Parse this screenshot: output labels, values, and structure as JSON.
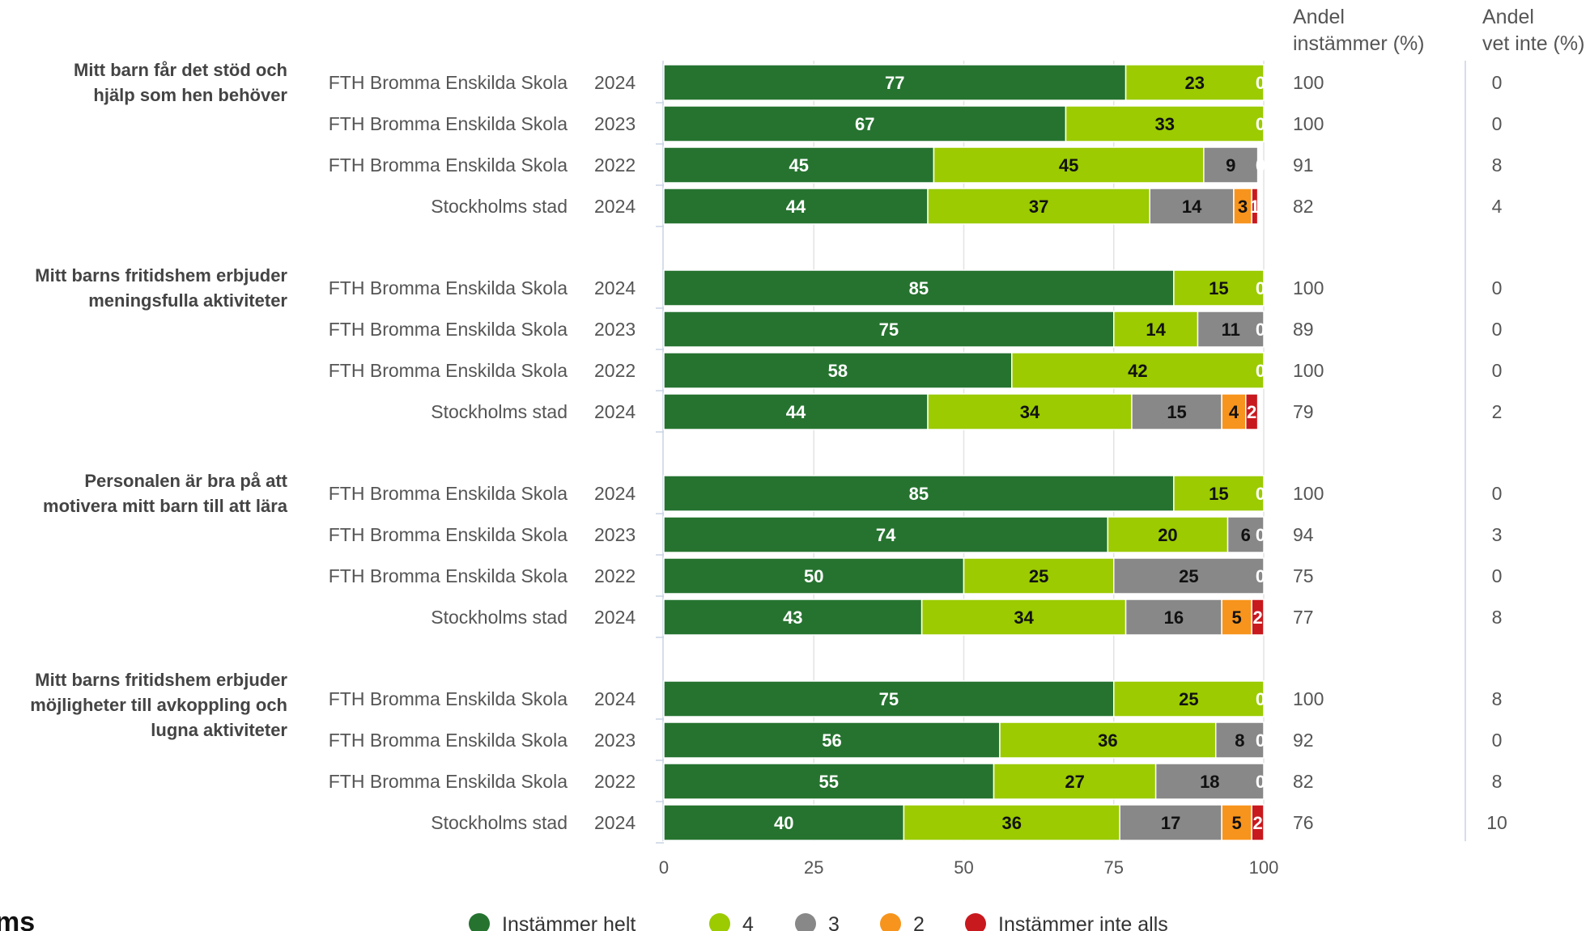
{
  "chart_data": {
    "type": "bar",
    "orientation": "horizontal",
    "stacked": true,
    "xlim": [
      0,
      100
    ],
    "x_ticks": [
      0,
      25,
      50,
      75,
      100
    ],
    "grid": true,
    "legend_position": "bottom",
    "series": [
      {
        "name": "Instämmer helt",
        "color": "#267330"
      },
      {
        "name": "4",
        "color": "#9BCB00"
      },
      {
        "name": "3",
        "color": "#888888"
      },
      {
        "name": "2",
        "color": "#F7941D"
      },
      {
        "name": "Instämmer inte alls",
        "color": "#C8191E"
      }
    ],
    "column_headers": {
      "agree": [
        "Andel",
        "instämmer (%)"
      ],
      "dont_know": [
        "Andel",
        "vet inte (%)"
      ]
    },
    "groups": [
      {
        "question": [
          "Mitt barn får det stöd och",
          "hjälp som hen behöver"
        ],
        "rows": [
          {
            "unit": "FTH Bromma Enskilda Skola",
            "year": "2024",
            "values": [
              77,
              23,
              0,
              0,
              0
            ],
            "agree": "100",
            "dont_know": "0"
          },
          {
            "unit": "FTH Bromma Enskilda Skola",
            "year": "2023",
            "values": [
              67,
              33,
              0,
              0,
              0
            ],
            "agree": "100",
            "dont_know": "0"
          },
          {
            "unit": "FTH Bromma Enskilda Skola",
            "year": "2022",
            "values": [
              45,
              45,
              9,
              0,
              0
            ],
            "agree": "91",
            "dont_know": "8"
          },
          {
            "unit": "Stockholms stad",
            "year": "2024",
            "values": [
              44,
              37,
              14,
              3,
              1
            ],
            "agree": "82",
            "dont_know": "4"
          }
        ]
      },
      {
        "question": [
          "Mitt barns fritidshem erbjuder",
          "meningsfulla aktiviteter"
        ],
        "rows": [
          {
            "unit": "FTH Bromma Enskilda Skola",
            "year": "2024",
            "values": [
              85,
              15,
              0,
              0,
              0
            ],
            "agree": "100",
            "dont_know": "0"
          },
          {
            "unit": "FTH Bromma Enskilda Skola",
            "year": "2023",
            "values": [
              75,
              14,
              11,
              0,
              0
            ],
            "agree": "89",
            "dont_know": "0"
          },
          {
            "unit": "FTH Bromma Enskilda Skola",
            "year": "2022",
            "values": [
              58,
              42,
              0,
              0,
              0
            ],
            "agree": "100",
            "dont_know": "0"
          },
          {
            "unit": "Stockholms stad",
            "year": "2024",
            "values": [
              44,
              34,
              15,
              4,
              2
            ],
            "agree": "79",
            "dont_know": "2"
          }
        ]
      },
      {
        "question": [
          "Personalen är bra på att",
          "motivera mitt barn till att lära"
        ],
        "rows": [
          {
            "unit": "FTH Bromma Enskilda Skola",
            "year": "2024",
            "values": [
              85,
              15,
              0,
              0,
              0
            ],
            "agree": "100",
            "dont_know": "0"
          },
          {
            "unit": "FTH Bromma Enskilda Skola",
            "year": "2023",
            "values": [
              74,
              20,
              6,
              0,
              0
            ],
            "agree": "94",
            "dont_know": "3"
          },
          {
            "unit": "FTH Bromma Enskilda Skola",
            "year": "2022",
            "values": [
              50,
              25,
              25,
              0,
              0
            ],
            "agree": "75",
            "dont_know": "0"
          },
          {
            "unit": "Stockholms stad",
            "year": "2024",
            "values": [
              43,
              34,
              16,
              5,
              2
            ],
            "agree": "77",
            "dont_know": "8"
          }
        ]
      },
      {
        "question": [
          "Mitt barns fritidshem erbjuder",
          "möjligheter till avkoppling och",
          "lugna aktiviteter"
        ],
        "rows": [
          {
            "unit": "FTH Bromma Enskilda Skola",
            "year": "2024",
            "values": [
              75,
              25,
              0,
              0,
              0
            ],
            "agree": "100",
            "dont_know": "8"
          },
          {
            "unit": "FTH Bromma Enskilda Skola",
            "year": "2023",
            "values": [
              56,
              36,
              8,
              0,
              0
            ],
            "agree": "92",
            "dont_know": "0"
          },
          {
            "unit": "FTH Bromma Enskilda Skola",
            "year": "2022",
            "values": [
              55,
              27,
              18,
              0,
              0
            ],
            "agree": "82",
            "dont_know": "8"
          },
          {
            "unit": "Stockholms stad",
            "year": "2024",
            "values": [
              40,
              36,
              17,
              5,
              2
            ],
            "agree": "76",
            "dont_know": "10"
          }
        ]
      }
    ]
  },
  "logo_fragment": "ms"
}
